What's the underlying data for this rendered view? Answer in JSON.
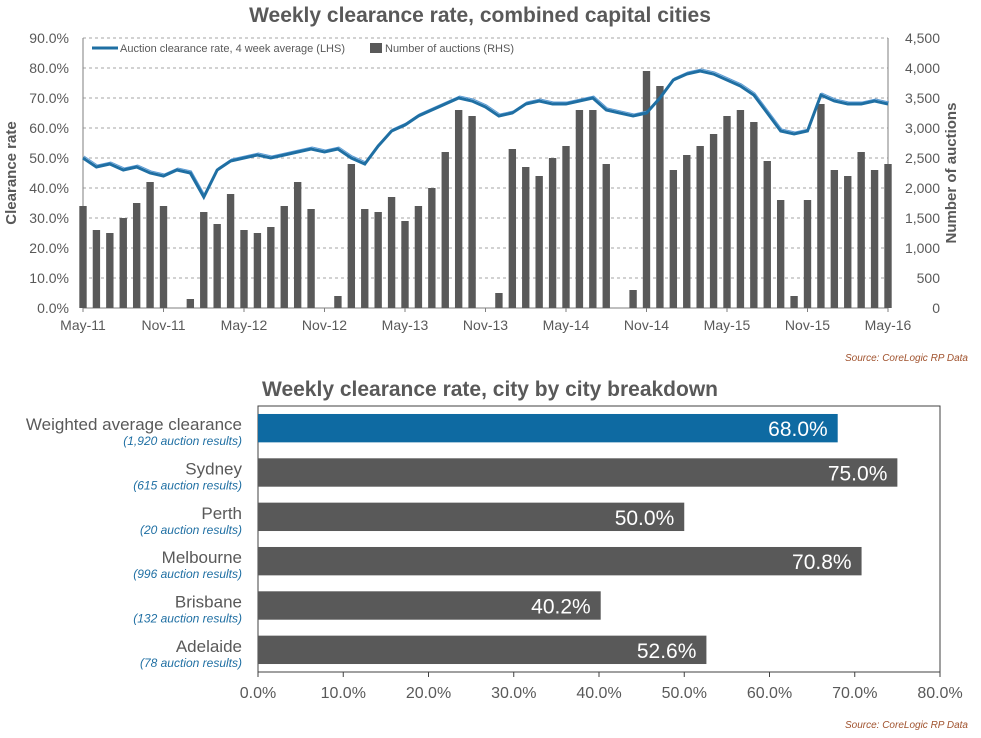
{
  "top_title": "Weekly clearance rate, combined capital cities",
  "top_source": "Source: CoreLogic  RP Data",
  "bottom_title": "Weekly clearance rate, city by city breakdown",
  "bottom_source": "Source: CoreLogic  RP Data",
  "colors": {
    "line": "#1f6fa3",
    "line_thin": "#5b9bd5",
    "bar": "#595959",
    "accent_bar": "#0e6aa2",
    "grid": "#a6a6a6"
  },
  "chart_data": [
    {
      "type": "line",
      "title": "Weekly clearance rate, combined capital cities",
      "ylabel": "Clearance rate",
      "y2label": "Number of auctions",
      "ylim": [
        0,
        90
      ],
      "y2lim": [
        0,
        4500
      ],
      "y_ticks": [
        "0.0%",
        "10.0%",
        "20.0%",
        "30.0%",
        "40.0%",
        "50.0%",
        "60.0%",
        "70.0%",
        "80.0%",
        "90.0%"
      ],
      "y2_ticks": [
        "0",
        "500",
        "1,000",
        "1,500",
        "2,000",
        "2,500",
        "3,000",
        "3,500",
        "4,000",
        "4,500"
      ],
      "x_ticks": [
        "May-11",
        "Nov-11",
        "May-12",
        "Nov-12",
        "May-13",
        "Nov-13",
        "May-14",
        "Nov-14",
        "May-15",
        "Nov-15",
        "May-16"
      ],
      "legend": [
        "Auction clearance rate, 4 week average (LHS)",
        "Number of auctions (RHS)"
      ],
      "series": [
        {
          "name": "Auction clearance rate, 4 week average (LHS)",
          "axis": "left",
          "x_month_start": "May-11",
          "points": [
            [
              0,
              50
            ],
            [
              1,
              47
            ],
            [
              2,
              48
            ],
            [
              3,
              46
            ],
            [
              4,
              47
            ],
            [
              5,
              45
            ],
            [
              6,
              44
            ],
            [
              7,
              46
            ],
            [
              8,
              45
            ],
            [
              9,
              37
            ],
            [
              10,
              46
            ],
            [
              11,
              49
            ],
            [
              12,
              50
            ],
            [
              13,
              51
            ],
            [
              14,
              50
            ],
            [
              15,
              51
            ],
            [
              16,
              52
            ],
            [
              17,
              53
            ],
            [
              18,
              52
            ],
            [
              19,
              53
            ],
            [
              20,
              50
            ],
            [
              21,
              48
            ],
            [
              22,
              54
            ],
            [
              23,
              59
            ],
            [
              24,
              61
            ],
            [
              25,
              64
            ],
            [
              26,
              66
            ],
            [
              27,
              68
            ],
            [
              28,
              70
            ],
            [
              29,
              69
            ],
            [
              30,
              67
            ],
            [
              31,
              64
            ],
            [
              32,
              65
            ],
            [
              33,
              68
            ],
            [
              34,
              69
            ],
            [
              35,
              68
            ],
            [
              36,
              68
            ],
            [
              37,
              69
            ],
            [
              38,
              70
            ],
            [
              39,
              66
            ],
            [
              40,
              65
            ],
            [
              41,
              64
            ],
            [
              42,
              65
            ],
            [
              43,
              70
            ],
            [
              44,
              76
            ],
            [
              45,
              78
            ],
            [
              46,
              79
            ],
            [
              47,
              78
            ],
            [
              48,
              76
            ],
            [
              49,
              74
            ],
            [
              50,
              71
            ],
            [
              51,
              65
            ],
            [
              52,
              59
            ],
            [
              53,
              58
            ],
            [
              54,
              59
            ],
            [
              55,
              71
            ],
            [
              56,
              69
            ],
            [
              57,
              68
            ],
            [
              58,
              68
            ],
            [
              59,
              69
            ],
            [
              60,
              68
            ]
          ]
        },
        {
          "name": "Number of auctions (RHS)",
          "axis": "right",
          "type": "bar",
          "x_month_start": "May-11",
          "points": [
            [
              0,
              1700
            ],
            [
              1,
              1300
            ],
            [
              2,
              1250
            ],
            [
              3,
              1500
            ],
            [
              4,
              1750
            ],
            [
              5,
              2100
            ],
            [
              6,
              1700
            ],
            [
              7,
              0
            ],
            [
              8,
              150
            ],
            [
              9,
              1600
            ],
            [
              10,
              1400
            ],
            [
              11,
              1900
            ],
            [
              12,
              1300
            ],
            [
              13,
              1250
            ],
            [
              14,
              1350
            ],
            [
              15,
              1700
            ],
            [
              16,
              2100
            ],
            [
              17,
              1650
            ],
            [
              18,
              0
            ],
            [
              19,
              200
            ],
            [
              20,
              2400
            ],
            [
              21,
              1650
            ],
            [
              22,
              1600
            ],
            [
              23,
              1850
            ],
            [
              24,
              1450
            ],
            [
              25,
              1700
            ],
            [
              26,
              2000
            ],
            [
              27,
              2600
            ],
            [
              28,
              3300
            ],
            [
              29,
              3200
            ],
            [
              30,
              0
            ],
            [
              31,
              250
            ],
            [
              32,
              2650
            ],
            [
              33,
              2350
            ],
            [
              34,
              2200
            ],
            [
              35,
              2500
            ],
            [
              36,
              2700
            ],
            [
              37,
              3300
            ],
            [
              38,
              3300
            ],
            [
              39,
              2400
            ],
            [
              40,
              0
            ],
            [
              41,
              300
            ],
            [
              42,
              3950
            ],
            [
              43,
              3700
            ],
            [
              44,
              2300
            ],
            [
              45,
              2550
            ],
            [
              46,
              2700
            ],
            [
              47,
              2900
            ],
            [
              48,
              3200
            ],
            [
              49,
              3300
            ],
            [
              50,
              3100
            ],
            [
              51,
              2450
            ],
            [
              52,
              1800
            ],
            [
              53,
              200
            ],
            [
              54,
              1800
            ],
            [
              55,
              3400
            ],
            [
              56,
              2300
            ],
            [
              57,
              2200
            ],
            [
              58,
              2600
            ],
            [
              59,
              2300
            ],
            [
              60,
              2400
            ]
          ]
        }
      ]
    },
    {
      "type": "bar",
      "title": "Weekly clearance rate, city by city breakdown",
      "orientation": "horizontal",
      "xlim": [
        0,
        80
      ],
      "x_ticks": [
        "0.0%",
        "10.0%",
        "20.0%",
        "30.0%",
        "40.0%",
        "50.0%",
        "60.0%",
        "70.0%",
        "80.0%"
      ],
      "categories": [
        {
          "name": "Weighted average clearance",
          "sub": "(1,920 auction results)",
          "value": 68.0,
          "label": "68.0%"
        },
        {
          "name": "Sydney",
          "sub": "(615 auction results)",
          "value": 75.0,
          "label": "75.0%"
        },
        {
          "name": "Perth",
          "sub": "(20 auction results)",
          "value": 50.0,
          "label": "50.0%"
        },
        {
          "name": "Melbourne",
          "sub": "(996 auction results)",
          "value": 70.8,
          "label": "70.8%"
        },
        {
          "name": "Brisbane",
          "sub": "(132 auction results)",
          "value": 40.2,
          "label": "40.2%"
        },
        {
          "name": "Adelaide",
          "sub": "(78 auction results)",
          "value": 52.6,
          "label": "52.6%"
        }
      ]
    }
  ]
}
